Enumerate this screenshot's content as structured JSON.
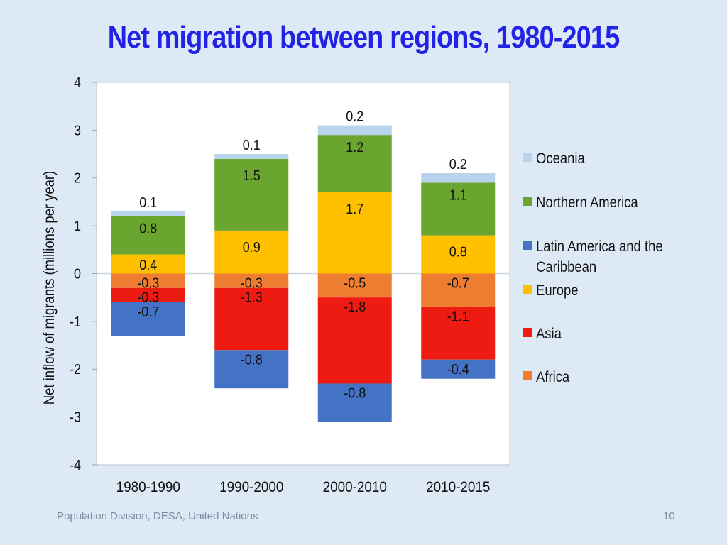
{
  "slide": {
    "title": "Net migration between regions, 1980-2015",
    "footer": "Population Division, DESA, United Nations",
    "page_number": "10"
  },
  "chart_data": {
    "type": "bar",
    "stacked": true,
    "title": "",
    "xlabel": "",
    "ylabel": "Net inflow of migrants (millions per year)",
    "ylim": [
      -4,
      4
    ],
    "yticks": [
      4,
      3,
      2,
      1,
      0,
      -1,
      -2,
      -3,
      -4
    ],
    "categories": [
      "1980-1990",
      "1990-2000",
      "2000-2010",
      "2010-2015"
    ],
    "grid": false,
    "legend_position": "right",
    "series": [
      {
        "name": "Oceania",
        "color": "#b8d3ec",
        "values": [
          0.1,
          0.1,
          0.2,
          0.2
        ],
        "labels": [
          "0.1",
          "0.1",
          "0.2",
          "0.2"
        ]
      },
      {
        "name": "Northern America",
        "color": "#6aa52f",
        "values": [
          0.8,
          1.5,
          1.2,
          1.1
        ],
        "labels": [
          "0.8",
          "1.5",
          "1.2",
          "1.1"
        ]
      },
      {
        "name": "Latin America and the Caribbean",
        "color": "#4472c4",
        "values": [
          -0.7,
          -0.8,
          -0.8,
          -0.4
        ],
        "labels": [
          "-0.7",
          "-0.8",
          "-0.8",
          "-0.4"
        ]
      },
      {
        "name": "Europe",
        "color": "#ffc000",
        "values": [
          0.4,
          0.9,
          1.7,
          0.8
        ],
        "labels": [
          "0.4",
          "0.9",
          "1.7",
          "0.8"
        ]
      },
      {
        "name": "Asia",
        "color": "#ee1b12",
        "values": [
          -0.3,
          -1.3,
          -1.8,
          -1.1
        ],
        "labels": [
          "-0.3",
          "-1.3",
          "-1.8",
          "-1.1"
        ]
      },
      {
        "name": "Africa",
        "color": "#ed7d31",
        "values": [
          -0.3,
          -0.3,
          -0.5,
          -0.7
        ],
        "labels": [
          "-0.3",
          "-0.3",
          "-0.5",
          "-0.7"
        ]
      }
    ],
    "stack_order_positive": [
      "Europe",
      "Northern America",
      "Oceania"
    ],
    "stack_order_negative": [
      "Africa",
      "Asia",
      "Latin America and the Caribbean"
    ]
  }
}
